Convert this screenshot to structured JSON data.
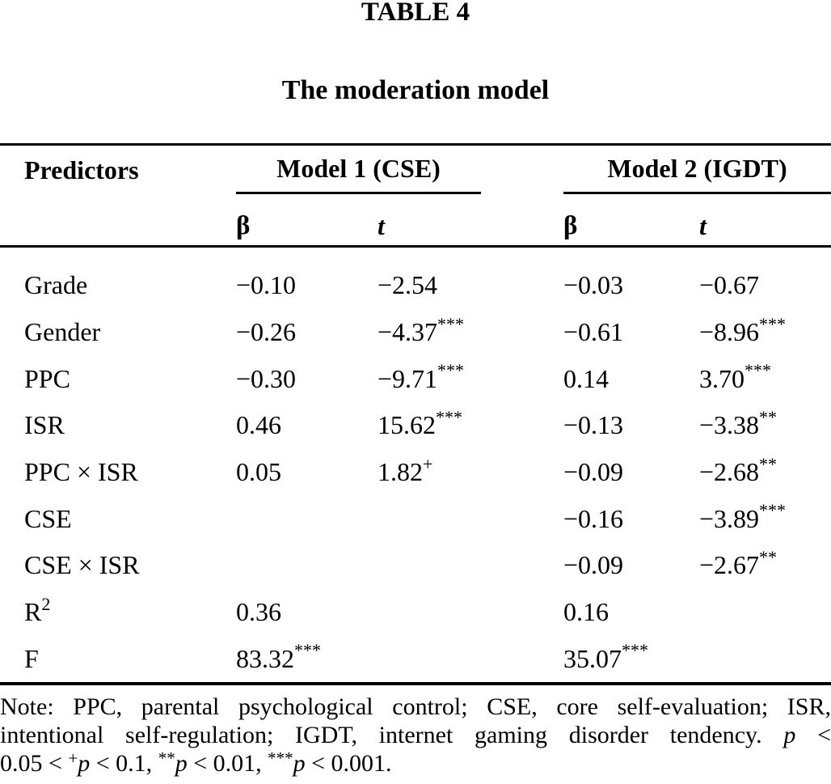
{
  "page": {
    "table_number": "TABLE 4",
    "table_title": "The moderation model"
  },
  "table": {
    "col_predictors": "Predictors",
    "model1": "Model 1 (CSE)",
    "model2": "Model 2 (IGDT)",
    "beta": "β",
    "t": "t",
    "rows": [
      {
        "label": "Grade",
        "cells": [
          {
            "v": "−0.10",
            "sup": ""
          },
          {
            "v": "−2.54",
            "sup": ""
          },
          {
            "v": "−0.03",
            "sup": ""
          },
          {
            "v": "−0.67",
            "sup": ""
          }
        ]
      },
      {
        "label": "Gender",
        "cells": [
          {
            "v": "−0.26",
            "sup": ""
          },
          {
            "v": "−4.37",
            "sup": "***"
          },
          {
            "v": "−0.61",
            "sup": ""
          },
          {
            "v": "−8.96",
            "sup": "***"
          }
        ]
      },
      {
        "label": "PPC",
        "cells": [
          {
            "v": "−0.30",
            "sup": ""
          },
          {
            "v": "−9.71",
            "sup": "***"
          },
          {
            "v": "0.14",
            "sup": ""
          },
          {
            "v": "3.70",
            "sup": "***"
          }
        ]
      },
      {
        "label": "ISR",
        "cells": [
          {
            "v": "0.46",
            "sup": ""
          },
          {
            "v": "15.62",
            "sup": "***"
          },
          {
            "v": "−0.13",
            "sup": ""
          },
          {
            "v": "−3.38",
            "sup": "**"
          }
        ]
      },
      {
        "label": "PPC × ISR",
        "cells": [
          {
            "v": "0.05",
            "sup": ""
          },
          {
            "v": "1.82",
            "sup": "+"
          },
          {
            "v": "−0.09",
            "sup": ""
          },
          {
            "v": "−2.68",
            "sup": "**"
          }
        ]
      },
      {
        "label": "CSE",
        "cells": [
          {
            "v": "",
            "sup": ""
          },
          {
            "v": "",
            "sup": ""
          },
          {
            "v": "−0.16",
            "sup": ""
          },
          {
            "v": "−3.89",
            "sup": "***"
          }
        ]
      },
      {
        "label": "CSE × ISR",
        "cells": [
          {
            "v": "",
            "sup": ""
          },
          {
            "v": "",
            "sup": ""
          },
          {
            "v": "−0.09",
            "sup": ""
          },
          {
            "v": "−2.67",
            "sup": "**"
          }
        ]
      },
      {
        "label": "R",
        "label_sup": "2",
        "cells": [
          {
            "v": "0.36",
            "sup": ""
          },
          {
            "v": "",
            "sup": ""
          },
          {
            "v": "0.16",
            "sup": ""
          },
          {
            "v": "",
            "sup": ""
          }
        ]
      },
      {
        "label": "F",
        "cells": [
          {
            "v": "83.32",
            "sup": "***"
          },
          {
            "v": "",
            "sup": ""
          },
          {
            "v": "35.07",
            "sup": "***"
          },
          {
            "v": "",
            "sup": ""
          }
        ]
      }
    ]
  },
  "note": {
    "line1": "Note: PPC, parental psychological control; CSE, core self-evaluation; ISR,",
    "line2": {
      "text": "intentional self-regulation; IGDT, internet gaming disorder tendency. ",
      "p": "p",
      "tail": " <"
    },
    "line3": {
      "s1": "0.05 < ",
      "sup1": "+",
      "p1": "p",
      "s2": " < 0.1, ",
      "sup2": "**",
      "p2": "p",
      "s3": " < 0.01, ",
      "sup3": "***",
      "p3": "p",
      "s4": " < 0.001."
    }
  }
}
